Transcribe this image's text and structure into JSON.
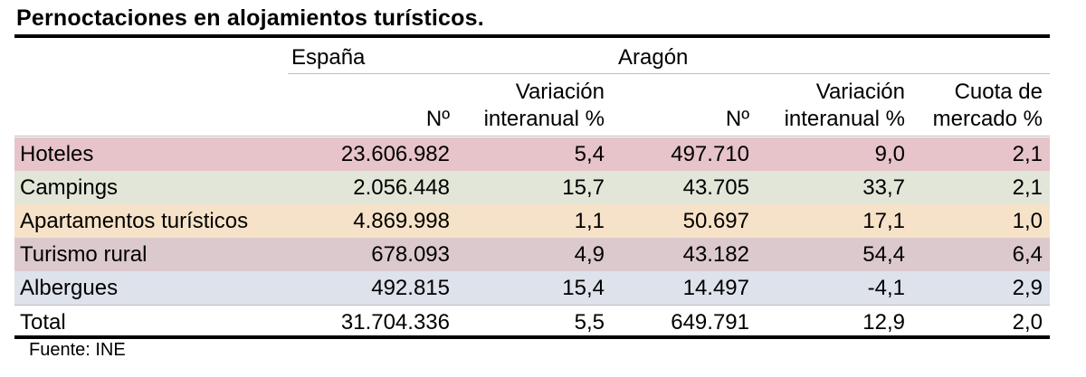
{
  "title": "Pernoctaciones en alojamientos turísticos.",
  "groups": {
    "spain": "España",
    "aragon": "Aragón"
  },
  "columns": {
    "es_n": "Nº",
    "es_var_1": "Variación",
    "es_var_2": "interanual %",
    "ar_n": "Nº",
    "ar_var_1": "Variación",
    "ar_var_2": "interanual %",
    "ar_cm_1": "Cuota de",
    "ar_cm_2": "mercado %"
  },
  "rows": [
    {
      "label": "Hoteles",
      "es_n": "23.606.982",
      "es_var": "5,4",
      "ar_n": "497.710",
      "ar_var": "9,0",
      "ar_cm": "2,1",
      "bg": "#e6c4c9"
    },
    {
      "label": "Campings",
      "es_n": "2.056.448",
      "es_var": "15,7",
      "ar_n": "43.705",
      "ar_var": "33,7",
      "ar_cm": "2,1",
      "bg": "#e1e6d8"
    },
    {
      "label": "Apartamentos turísticos",
      "es_n": "4.869.998",
      "es_var": "1,1",
      "ar_n": "50.697",
      "ar_var": "17,1",
      "ar_cm": "1,0",
      "bg": "#f6e2c8"
    },
    {
      "label": "Turismo rural",
      "es_n": "678.093",
      "es_var": "4,9",
      "ar_n": "43.182",
      "ar_var": "54,4",
      "ar_cm": "6,4",
      "bg": "#dcc9cd"
    },
    {
      "label": "Albergues",
      "es_n": "492.815",
      "es_var": "15,4",
      "ar_n": "14.497",
      "ar_var": "-4,1",
      "ar_cm": "2,9",
      "bg": "#dde2eb"
    },
    {
      "label": "Total",
      "es_n": "31.704.336",
      "es_var": "5,5",
      "ar_n": "649.791",
      "ar_var": "12,9",
      "ar_cm": "2,0",
      "bg": "#ffffff"
    }
  ],
  "source": "Fuente: INE"
}
